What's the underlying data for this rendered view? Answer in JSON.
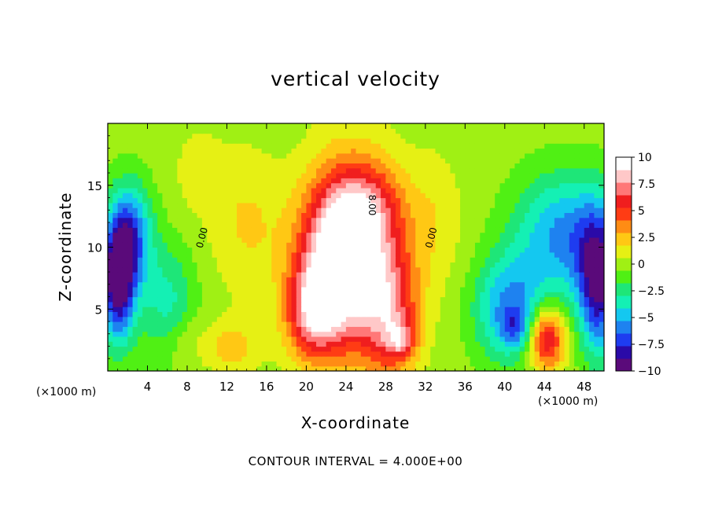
{
  "chart_data": {
    "type": "heatmap",
    "title": "vertical velocity",
    "xlabel": "X-coordinate",
    "ylabel": "Z-coordinate",
    "x_unit_label": "(×1000 m)",
    "xlim": [
      0,
      50
    ],
    "ylim": [
      0,
      20
    ],
    "x_ticks": [
      4,
      8,
      12,
      16,
      20,
      24,
      28,
      32,
      36,
      40,
      44,
      48
    ],
    "y_ticks": [
      5,
      10,
      15
    ],
    "x_tick_labels": [
      "4",
      "8",
      "12",
      "16",
      "20",
      "24",
      "28",
      "32",
      "36",
      "40",
      "44",
      "48"
    ],
    "y_tick_labels": [
      "5",
      "10",
      "15"
    ],
    "colorbar": {
      "range": [
        -10,
        10
      ],
      "ticks": [
        10,
        7.5,
        5,
        2.5,
        0,
        -2.5,
        -5,
        -7.5,
        -10
      ],
      "tick_labels": [
        "10",
        "7.5",
        "5",
        "2.5",
        "0",
        "−2.5",
        "−5",
        "−7.5",
        "−10"
      ],
      "colors": [
        "#5a0a7a",
        "#2a0aa8",
        "#1e3cf0",
        "#1e82f0",
        "#14c8f0",
        "#14f0b4",
        "#1ee678",
        "#50f014",
        "#a0f014",
        "#e6f014",
        "#ffc814",
        "#ff8c14",
        "#ff3c14",
        "#f01e1e",
        "#ff7878",
        "#ffc8c8",
        "#ffffff"
      ]
    },
    "contour_interval_text": "CONTOUR INTERVAL = 4.000E+00",
    "contour_labels": [
      "0.00",
      "8.00",
      "0.00"
    ],
    "features": [
      {
        "x": 24.5,
        "z": 9.5,
        "sx": 3.2,
        "sz": 5.0,
        "w": 10.0
      },
      {
        "x": 25.5,
        "z": 13.0,
        "sx": 3.0,
        "sz": 2.5,
        "w": 4.0
      },
      {
        "x": 20.5,
        "z": 4.5,
        "sx": 1.8,
        "sz": 2.5,
        "w": 5.0
      },
      {
        "x": 28.5,
        "z": 4.5,
        "sx": 2.0,
        "sz": 3.5,
        "w": 6.0
      },
      {
        "x": 22.0,
        "z": 7.0,
        "sx": 2.5,
        "sz": 3.5,
        "w": 5.0
      },
      {
        "x": 44.2,
        "z": 2.7,
        "sx": 1.3,
        "sz": 1.8,
        "w": 8.0
      },
      {
        "x": 29.5,
        "z": 2.5,
        "sx": 1.0,
        "sz": 1.0,
        "w": 4.0
      },
      {
        "x": 1.0,
        "z": 7.5,
        "sx": 1.2,
        "sz": 3.5,
        "w": -11.0
      },
      {
        "x": 2.5,
        "z": 11.0,
        "sx": 1.5,
        "sz": 3.0,
        "w": -6.0
      },
      {
        "x": 49.5,
        "z": 7.0,
        "sx": 1.5,
        "sz": 4.0,
        "w": -9.0
      },
      {
        "x": 46.0,
        "z": 11.0,
        "sx": 3.5,
        "sz": 3.5,
        "w": -6.0
      },
      {
        "x": 40.5,
        "z": 5.0,
        "sx": 2.5,
        "sz": 3.0,
        "w": -6.0
      },
      {
        "x": 41.0,
        "z": 3.5,
        "sx": 1.0,
        "sz": 1.0,
        "w": -3.0
      },
      {
        "x": 6.0,
        "z": 5.5,
        "sx": 2.0,
        "sz": 3.5,
        "w": -3.5
      },
      {
        "x": 14.0,
        "z": 12.0,
        "sx": 2.5,
        "sz": 4.0,
        "w": 2.0
      },
      {
        "x": 7.5,
        "z": 2.5,
        "sx": 1.5,
        "sz": 1.5,
        "w": 1.5
      },
      {
        "x": 12.5,
        "z": 2.0,
        "sx": 2.0,
        "sz": 1.5,
        "w": 2.5
      },
      {
        "x": 33.0,
        "z": 12.0,
        "sx": 2.0,
        "sz": 4.0,
        "w": 1.5
      },
      {
        "x": 9.0,
        "z": 16.0,
        "sx": 2.0,
        "sz": 3.0,
        "w": 1.0
      }
    ]
  }
}
